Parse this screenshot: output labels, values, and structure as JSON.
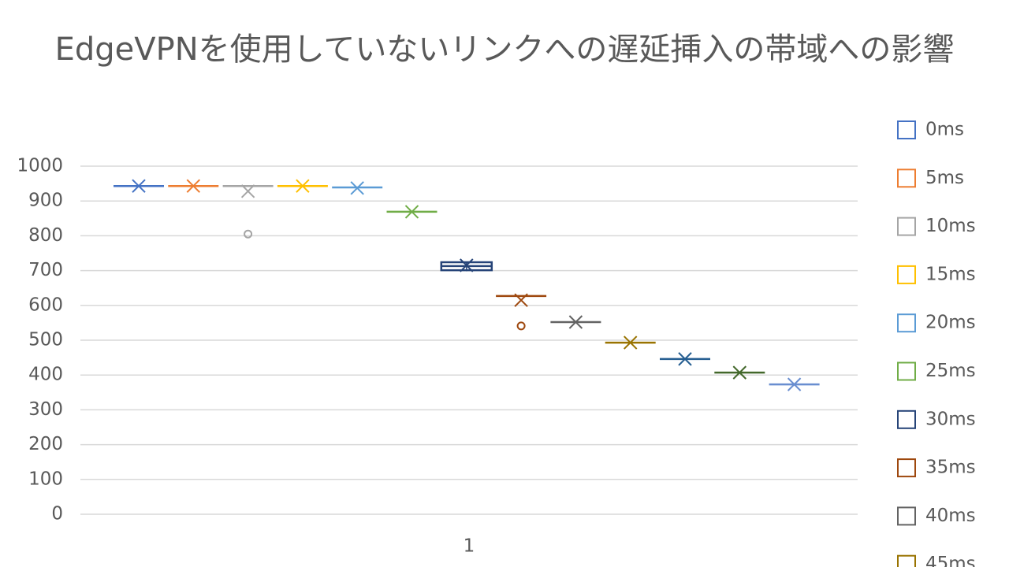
{
  "chart_data": {
    "type": "box",
    "title": "EdgeVPNを使用していないリンクへの遅延挿入の帯域への影響",
    "categories": [
      "1"
    ],
    "ylim": [
      0,
      1000
    ],
    "yticks": [
      0,
      100,
      200,
      300,
      400,
      500,
      600,
      700,
      800,
      900,
      1000
    ],
    "grid": true,
    "series": [
      {
        "name": "0ms",
        "color": "#4472c4",
        "min": 943,
        "q1": 943,
        "median": 943,
        "q3": 943,
        "max": 943,
        "mean": 943,
        "outliers": []
      },
      {
        "name": "5ms",
        "color": "#ed7d31",
        "min": 943,
        "q1": 943,
        "median": 943,
        "q3": 943,
        "max": 943,
        "mean": 943,
        "outliers": []
      },
      {
        "name": "10ms",
        "color": "#a5a5a5",
        "min": 943,
        "q1": 943,
        "median": 943,
        "q3": 943,
        "max": 943,
        "mean": 928,
        "outliers": [
          805
        ]
      },
      {
        "name": "15ms",
        "color": "#ffc000",
        "min": 943,
        "q1": 943,
        "median": 943,
        "q3": 943,
        "max": 943,
        "mean": 943,
        "outliers": []
      },
      {
        "name": "20ms",
        "color": "#5b9bd5",
        "min": 939,
        "q1": 939,
        "median": 939,
        "q3": 939,
        "max": 939,
        "mean": 937,
        "outliers": []
      },
      {
        "name": "25ms",
        "color": "#70ad47",
        "min": 869,
        "q1": 869,
        "median": 869,
        "q3": 869,
        "max": 869,
        "mean": 869,
        "outliers": []
      },
      {
        "name": "30ms",
        "color": "#264478",
        "min": 698,
        "q1": 701,
        "median": 713,
        "q3": 724,
        "max": 726,
        "mean": 715,
        "outliers": []
      },
      {
        "name": "35ms",
        "color": "#9e480e",
        "min": 627,
        "q1": 627,
        "median": 627,
        "q3": 627,
        "max": 627,
        "mean": 615,
        "outliers": [
          541
        ]
      },
      {
        "name": "40ms",
        "color": "#636363",
        "min": 552,
        "q1": 552,
        "median": 552,
        "q3": 552,
        "max": 552,
        "mean": 552,
        "outliers": []
      },
      {
        "name": "45ms",
        "color": "#997300",
        "min": 493,
        "q1": 493,
        "median": 493,
        "q3": 493,
        "max": 493,
        "mean": 493,
        "outliers": []
      },
      {
        "color": "#255e91",
        "min": 446,
        "q1": 446,
        "median": 446,
        "q3": 446,
        "max": 446,
        "mean": 446,
        "outliers": []
      },
      {
        "color": "#43682b",
        "min": 407,
        "q1": 407,
        "median": 407,
        "q3": 407,
        "max": 407,
        "mean": 407,
        "outliers": []
      },
      {
        "color": "#698ed0",
        "min": 373,
        "q1": 373,
        "median": 373,
        "q3": 373,
        "max": 373,
        "mean": 373,
        "outliers": []
      }
    ]
  }
}
